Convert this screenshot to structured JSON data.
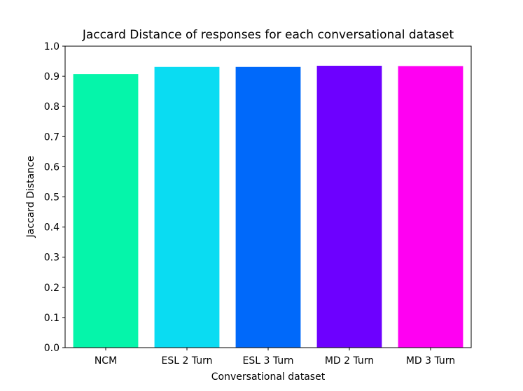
{
  "chart_data": {
    "type": "bar",
    "title": "Jaccard Distance of responses for each conversational dataset",
    "xlabel": "Conversational dataset",
    "ylabel": "Jaccard Distance",
    "ylim": [
      0,
      1.0
    ],
    "yticks": [
      "0.0",
      "0.1",
      "0.2",
      "0.3",
      "0.4",
      "0.5",
      "0.6",
      "0.7",
      "0.8",
      "0.9",
      "1.0"
    ],
    "categories": [
      "NCM",
      "ESL 2 Turn",
      "ESL 3 Turn",
      "MD 2 Turn",
      "MD 3 Turn"
    ],
    "values": [
      0.907,
      0.931,
      0.931,
      0.935,
      0.934
    ],
    "colors": [
      "#05f5aa",
      "#0adcf2",
      "#0069fa",
      "#6d00ff",
      "#ff00f2"
    ],
    "grid": false,
    "legend": "none"
  }
}
